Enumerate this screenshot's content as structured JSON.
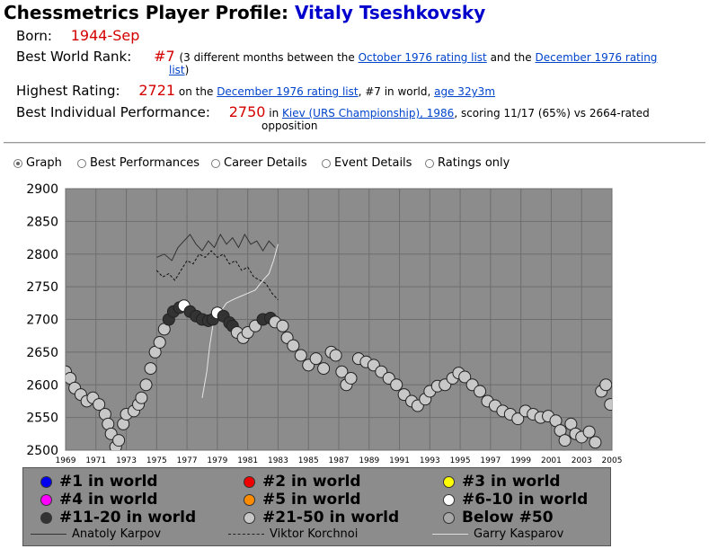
{
  "page": {
    "title_prefix": "Chessmetrics Player Profile: ",
    "player": "Vitaly Tseshkovsky"
  },
  "profile": {
    "born_label": "Born:",
    "born_value": "1944-Sep",
    "rank_label": "Best World Rank:",
    "rank_value": "#7",
    "rank_text1": "(3 different months between the ",
    "rank_link1": "October 1976 rating list",
    "rank_text2": " and the ",
    "rank_link2a": "December 1976 rating",
    "rank_link2b": "list",
    "rank_text3": ")",
    "highest_label": "Highest Rating:",
    "highest_value": "2721",
    "highest_text1": " on the ",
    "highest_link": "December 1976 rating list",
    "highest_text2": ", #7 in world, ",
    "highest_age": "age 32y3m",
    "perf_label": "Best Individual Performance:",
    "perf_value": "2750",
    "perf_text1": " in ",
    "perf_link": "Kiev (URS Championship), 1986",
    "perf_text2": ", scoring 11/17 (65%) vs 2664-rated",
    "perf_text3": "opposition"
  },
  "tabs": [
    {
      "label": "Graph",
      "selected": true
    },
    {
      "label": "Best Performances",
      "selected": false
    },
    {
      "label": "Career Details",
      "selected": false
    },
    {
      "label": "Event Details",
      "selected": false
    },
    {
      "label": "Ratings only",
      "selected": false
    }
  ],
  "legend": {
    "ranks": [
      {
        "label": "#1 in world",
        "color": "#0000ee"
      },
      {
        "label": "#2 in world",
        "color": "#ee0000"
      },
      {
        "label": "#3 in world",
        "color": "#ffff00"
      },
      {
        "label": "#4 in world",
        "color": "#ff00ff"
      },
      {
        "label": "#5 in world",
        "color": "#ff8c00"
      },
      {
        "label": "#6-10 in world",
        "color": "#ffffff"
      },
      {
        "label": "#11-20 in world",
        "color": "#333333"
      },
      {
        "label": "#21-50 in world",
        "color": "#c8c8c8"
      },
      {
        "label": "Below #50",
        "color": "#a8a8a8"
      }
    ],
    "lines": [
      {
        "label": "Anatoly Karpov",
        "style": "solid"
      },
      {
        "label": "Viktor Korchnoi",
        "style": "dashed"
      },
      {
        "label": "Garry Kasparov",
        "style": "light"
      }
    ]
  },
  "chart_data": {
    "type": "scatter",
    "xlim": [
      1969,
      2005
    ],
    "ylim": [
      2500,
      2900
    ],
    "x_ticks": [
      1969,
      1971,
      1973,
      1975,
      1977,
      1979,
      1981,
      1983,
      1985,
      1987,
      1989,
      1991,
      1993,
      1995,
      1997,
      1999,
      2001,
      2003,
      2005
    ],
    "y_ticks": [
      2500,
      2550,
      2600,
      2650,
      2700,
      2750,
      2800,
      2850,
      2900
    ],
    "grid": true,
    "colors": {
      "plot_bg": "#8c8c8c",
      "grid": "#6e6e6e"
    },
    "player_series": {
      "name": "Vitaly Tseshkovsky",
      "points": [
        [
          1969.0,
          2620,
          "c"
        ],
        [
          1969.3,
          2610,
          "c"
        ],
        [
          1969.6,
          2595,
          "c"
        ],
        [
          1970.0,
          2585,
          "c"
        ],
        [
          1970.4,
          2575,
          "c"
        ],
        [
          1970.8,
          2580,
          "c"
        ],
        [
          1971.2,
          2570,
          "c"
        ],
        [
          1971.6,
          2555,
          "c"
        ],
        [
          1971.8,
          2540,
          "c"
        ],
        [
          1972.0,
          2525,
          "c"
        ],
        [
          1972.3,
          2505,
          "c"
        ],
        [
          1972.5,
          2515,
          "c"
        ],
        [
          1972.8,
          2540,
          "c"
        ],
        [
          1973.0,
          2555,
          "c"
        ],
        [
          1973.5,
          2560,
          "c"
        ],
        [
          1973.8,
          2570,
          "c"
        ],
        [
          1974.0,
          2580,
          "c"
        ],
        [
          1974.3,
          2600,
          "c"
        ],
        [
          1974.6,
          2625,
          "c"
        ],
        [
          1974.9,
          2650,
          "c"
        ],
        [
          1975.2,
          2665,
          "c"
        ],
        [
          1975.5,
          2685,
          "c"
        ],
        [
          1975.8,
          2700,
          "d"
        ],
        [
          1976.1,
          2712,
          "d"
        ],
        [
          1976.5,
          2718,
          "d"
        ],
        [
          1976.8,
          2721,
          "w"
        ],
        [
          1977.2,
          2712,
          "d"
        ],
        [
          1977.6,
          2705,
          "d"
        ],
        [
          1978.0,
          2700,
          "d"
        ],
        [
          1978.4,
          2698,
          "d"
        ],
        [
          1978.7,
          2700,
          "d"
        ],
        [
          1979.0,
          2710,
          "w"
        ],
        [
          1979.4,
          2705,
          "d"
        ],
        [
          1979.8,
          2695,
          "d"
        ],
        [
          1980.0,
          2690,
          "d"
        ],
        [
          1980.3,
          2680,
          "c"
        ],
        [
          1980.7,
          2672,
          "c"
        ],
        [
          1981.0,
          2680,
          "c"
        ],
        [
          1981.5,
          2690,
          "c"
        ],
        [
          1982.0,
          2700,
          "d"
        ],
        [
          1982.5,
          2702,
          "d"
        ],
        [
          1982.8,
          2696,
          "c"
        ],
        [
          1983.3,
          2690,
          "c"
        ],
        [
          1983.6,
          2672,
          "c"
        ],
        [
          1984.0,
          2660,
          "c"
        ],
        [
          1984.5,
          2645,
          "c"
        ],
        [
          1985.0,
          2630,
          "c"
        ],
        [
          1985.5,
          2640,
          "c"
        ],
        [
          1986.0,
          2625,
          "c"
        ],
        [
          1986.5,
          2650,
          "c"
        ],
        [
          1986.8,
          2645,
          "c"
        ],
        [
          1987.2,
          2620,
          "c"
        ],
        [
          1987.5,
          2600,
          "c"
        ],
        [
          1987.8,
          2610,
          "c"
        ],
        [
          1988.3,
          2640,
          "c"
        ],
        [
          1988.8,
          2635,
          "c"
        ],
        [
          1989.3,
          2630,
          "c"
        ],
        [
          1989.8,
          2620,
          "c"
        ],
        [
          1990.3,
          2610,
          "c"
        ],
        [
          1990.8,
          2600,
          "c"
        ],
        [
          1991.3,
          2585,
          "c"
        ],
        [
          1991.8,
          2575,
          "c"
        ],
        [
          1992.2,
          2568,
          "c"
        ],
        [
          1992.7,
          2578,
          "c"
        ],
        [
          1993.0,
          2590,
          "c"
        ],
        [
          1993.5,
          2598,
          "c"
        ],
        [
          1994.0,
          2600,
          "c"
        ],
        [
          1994.5,
          2610,
          "c"
        ],
        [
          1994.9,
          2618,
          "c"
        ],
        [
          1995.3,
          2612,
          "c"
        ],
        [
          1995.8,
          2600,
          "c"
        ],
        [
          1996.3,
          2590,
          "c"
        ],
        [
          1996.8,
          2575,
          "c"
        ],
        [
          1997.3,
          2568,
          "c"
        ],
        [
          1997.8,
          2560,
          "c"
        ],
        [
          1998.3,
          2555,
          "c"
        ],
        [
          1998.8,
          2548,
          "c"
        ],
        [
          1999.3,
          2560,
          "c"
        ],
        [
          1999.8,
          2555,
          "c"
        ],
        [
          2000.3,
          2550,
          "c"
        ],
        [
          2000.8,
          2552,
          "c"
        ],
        [
          2001.3,
          2545,
          "c"
        ],
        [
          2001.6,
          2530,
          "c"
        ],
        [
          2001.9,
          2515,
          "c"
        ],
        [
          2002.3,
          2540,
          "c"
        ],
        [
          2002.6,
          2525,
          "c"
        ],
        [
          2003.0,
          2520,
          "c"
        ],
        [
          2003.5,
          2528,
          "c"
        ],
        [
          2003.9,
          2512,
          "c"
        ],
        [
          2004.3,
          2590,
          "c"
        ],
        [
          2004.6,
          2600,
          "c"
        ],
        [
          2004.9,
          2570,
          "c"
        ]
      ]
    },
    "comparison_series": [
      {
        "name": "Anatoly Karpov",
        "style": "solid",
        "color": "#333333",
        "points": [
          [
            1975.0,
            2795
          ],
          [
            1975.5,
            2800
          ],
          [
            1976.0,
            2790
          ],
          [
            1976.4,
            2810
          ],
          [
            1976.8,
            2820
          ],
          [
            1977.2,
            2830
          ],
          [
            1977.6,
            2815
          ],
          [
            1978.0,
            2805
          ],
          [
            1978.4,
            2820
          ],
          [
            1978.8,
            2810
          ],
          [
            1979.2,
            2830
          ],
          [
            1979.6,
            2815
          ],
          [
            1980.0,
            2825
          ],
          [
            1980.4,
            2810
          ],
          [
            1980.8,
            2830
          ],
          [
            1981.2,
            2815
          ],
          [
            1981.6,
            2820
          ],
          [
            1982.0,
            2805
          ],
          [
            1982.4,
            2820
          ],
          [
            1982.8,
            2810
          ]
        ]
      },
      {
        "name": "Viktor Korchnoi",
        "style": "dashed",
        "color": "#111111",
        "points": [
          [
            1975.0,
            2775
          ],
          [
            1975.4,
            2765
          ],
          [
            1975.8,
            2770
          ],
          [
            1976.2,
            2760
          ],
          [
            1976.6,
            2775
          ],
          [
            1977.0,
            2790
          ],
          [
            1977.4,
            2785
          ],
          [
            1977.8,
            2800
          ],
          [
            1978.2,
            2795
          ],
          [
            1978.6,
            2805
          ],
          [
            1979.0,
            2795
          ],
          [
            1979.4,
            2800
          ],
          [
            1979.8,
            2785
          ],
          [
            1980.2,
            2790
          ],
          [
            1980.6,
            2775
          ],
          [
            1981.0,
            2780
          ],
          [
            1981.4,
            2765
          ],
          [
            1981.8,
            2760
          ],
          [
            1982.2,
            2755
          ],
          [
            1982.6,
            2740
          ],
          [
            1983.0,
            2730
          ]
        ]
      },
      {
        "name": "Garry Kasparov",
        "style": "light",
        "color": "#e6e6e6",
        "points": [
          [
            1978.0,
            2580
          ],
          [
            1978.3,
            2620
          ],
          [
            1978.5,
            2660
          ],
          [
            1978.7,
            2690
          ],
          [
            1979.0,
            2700
          ],
          [
            1979.3,
            2715
          ],
          [
            1979.6,
            2725
          ],
          [
            1980.0,
            2730
          ],
          [
            1980.5,
            2735
          ],
          [
            1981.0,
            2740
          ],
          [
            1981.5,
            2745
          ],
          [
            1982.0,
            2760
          ],
          [
            1982.4,
            2770
          ],
          [
            1982.7,
            2790
          ],
          [
            1983.0,
            2815
          ]
        ]
      }
    ]
  }
}
